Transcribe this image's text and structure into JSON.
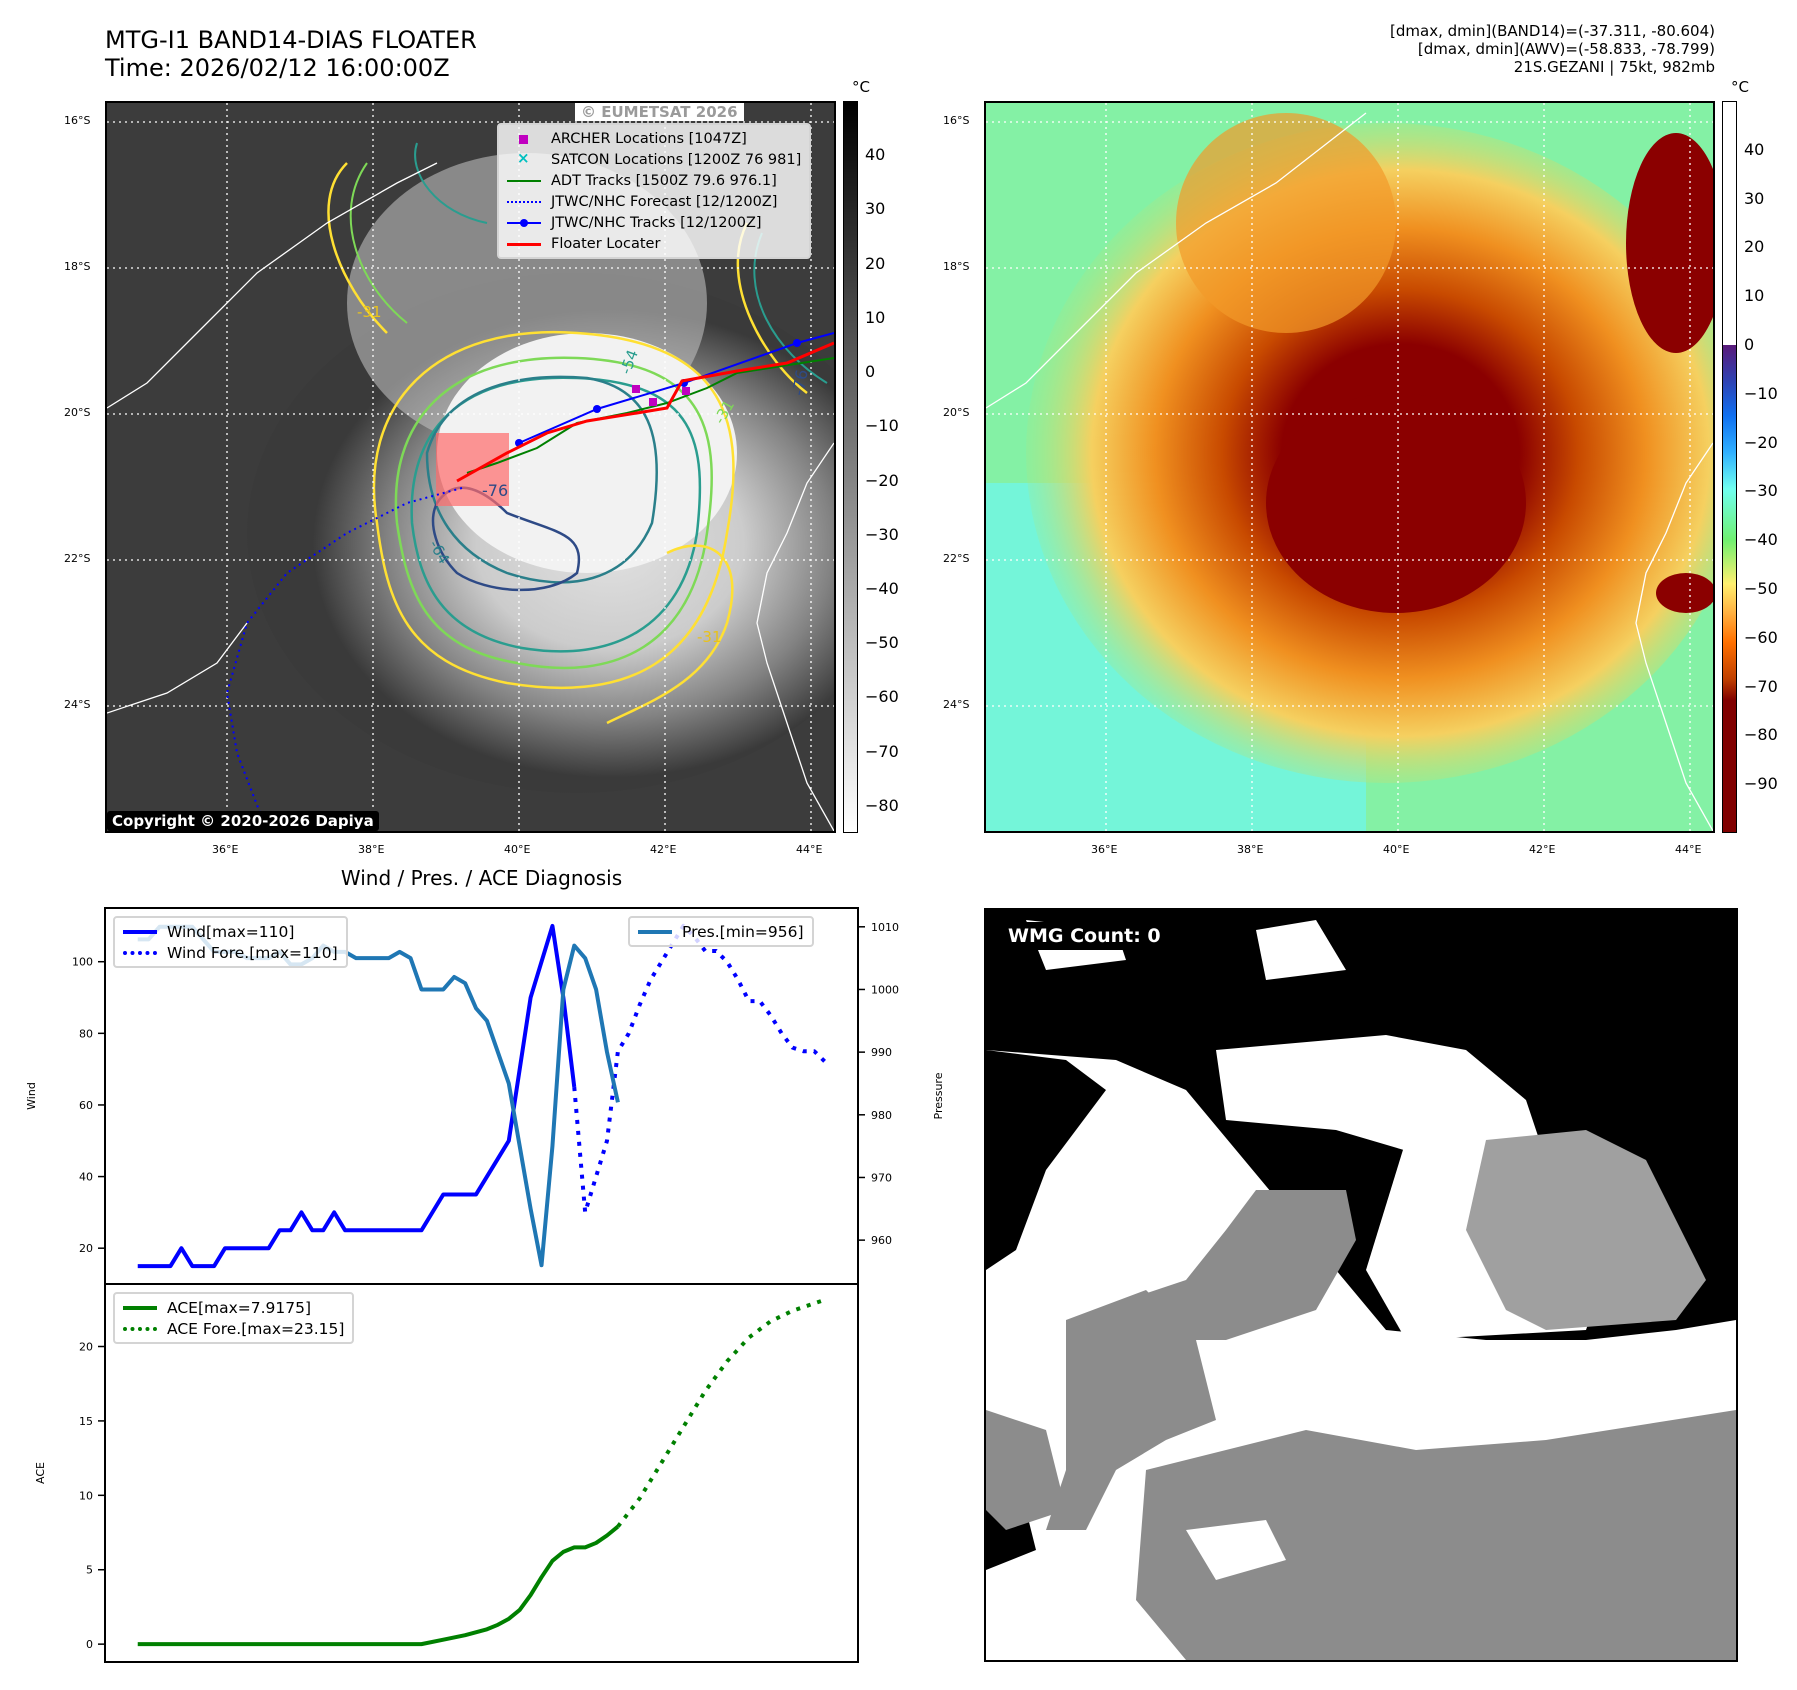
{
  "header": {
    "title_line1": "MTG-I1 BAND14-DIAS FLOATER",
    "title_line2": "Time: 2026/02/12 16:00:00Z",
    "info_line1": "[dmax, dmin](BAND14)=(-37.311, -80.604)",
    "info_line2": "[dmax, dmin](AWV)=(-58.833, -78.799)",
    "info_line3": "21S.GEZANI | 75kt, 982mb"
  },
  "map_left": {
    "lat_ticks": [
      "16°S",
      "18°S",
      "20°S",
      "22°S",
      "24°S"
    ],
    "lon_ticks": [
      "36°E",
      "38°E",
      "40°E",
      "42°E",
      "44°E"
    ],
    "legend": [
      {
        "label": "ARCHER Locations [1047Z]",
        "icon": "square-marker",
        "color": "#c000c0"
      },
      {
        "label": "SATCON Locations [1200Z 76 981]",
        "icon": "x-marker",
        "color": "#00c0c0"
      },
      {
        "label": "ADT Tracks [1500Z 79.6 976.1]",
        "icon": "solid-line",
        "color": "#008000"
      },
      {
        "label": "JTWC/NHC Forecast [12/1200Z]",
        "icon": "dotted-line",
        "color": "#0000ff"
      },
      {
        "label": "JTWC/NHC Tracks [12/1200Z]",
        "icon": "line-dot",
        "color": "#0000ff"
      },
      {
        "label": "Floater Locater",
        "icon": "solid-line",
        "color": "#ff0000"
      }
    ],
    "watermark": "© EUMETSAT 2026",
    "contour_labels": [
      "-31",
      "-31",
      "-31",
      "-54",
      "-64",
      "-76",
      "-76"
    ],
    "copyright": "Copyright © 2020-2026 Dapiya",
    "colorbar": {
      "unit": "°C",
      "ticks": [
        "40",
        "30",
        "20",
        "10",
        "0",
        "−10",
        "−20",
        "−30",
        "−40",
        "−50",
        "−60",
        "−70",
        "−80"
      ],
      "range": [
        -85,
        50
      ],
      "scheme": "grayscale"
    }
  },
  "map_right": {
    "lat_ticks": [
      "16°S",
      "18°S",
      "20°S",
      "22°S",
      "24°S"
    ],
    "lon_ticks": [
      "36°E",
      "38°E",
      "40°E",
      "42°E",
      "44°E"
    ],
    "colorbar": {
      "unit": "°C",
      "ticks": [
        "40",
        "30",
        "20",
        "10",
        "0",
        "−10",
        "−20",
        "−30",
        "−40",
        "−50",
        "−60",
        "−70",
        "−80",
        "−90"
      ],
      "range": [
        -100,
        50
      ],
      "scheme": "rainbow-above-zero-white"
    }
  },
  "wmg_panel": {
    "label": "WMG Count: 0"
  },
  "chart_data": [
    {
      "type": "line",
      "title": "Wind / Pres. / ACE Diagnosis",
      "xlabel": "",
      "ylabel": "Wind",
      "ylabel_right": "Pressure",
      "ylim": [
        10,
        115
      ],
      "ylim_right": [
        953,
        1013
      ],
      "yticks": [
        20,
        40,
        60,
        80,
        100
      ],
      "yticks_right": [
        960,
        970,
        980,
        990,
        1000,
        1010
      ],
      "xlim": [
        -3,
        66
      ],
      "series": [
        {
          "name": "Wind[max=110]",
          "axis": "left",
          "style": "solid",
          "color": "#0000ff",
          "x": [
            0,
            1,
            2,
            3,
            4,
            5,
            6,
            7,
            8,
            9,
            10,
            11,
            12,
            13,
            14,
            15,
            16,
            17,
            18,
            19,
            20,
            21,
            22,
            23,
            24,
            25,
            26,
            27,
            28,
            29,
            30,
            31,
            32,
            33,
            34,
            35,
            36,
            37,
            38,
            39,
            40
          ],
          "values": [
            15,
            15,
            15,
            15,
            20,
            15,
            15,
            15,
            20,
            20,
            20,
            20,
            20,
            25,
            25,
            30,
            25,
            25,
            30,
            25,
            25,
            25,
            25,
            25,
            25,
            25,
            25,
            30,
            35,
            35,
            35,
            35,
            40,
            45,
            50,
            70,
            90,
            100,
            110,
            90,
            65
          ]
        },
        {
          "name": "Wind Fore.[max=110]",
          "axis": "left",
          "style": "dotted",
          "color": "#0000ff",
          "x": [
            40,
            41,
            42,
            43,
            44,
            45,
            46,
            47,
            48,
            49,
            50,
            51,
            52,
            53,
            54,
            55,
            56,
            57,
            58,
            59,
            60,
            61,
            62,
            63
          ],
          "values": [
            65,
            30,
            40,
            50,
            75,
            80,
            88,
            95,
            100,
            105,
            110,
            107,
            103,
            103,
            100,
            95,
            89,
            89,
            85,
            80,
            76,
            75,
            75,
            72
          ]
        },
        {
          "name": "Pres.[min=956]",
          "axis": "right",
          "style": "solid",
          "color": "#1f77b4",
          "x": [
            0,
            1,
            2,
            3,
            4,
            5,
            6,
            7,
            8,
            9,
            10,
            11,
            12,
            13,
            14,
            15,
            16,
            17,
            18,
            19,
            20,
            21,
            22,
            23,
            24,
            25,
            26,
            27,
            28,
            29,
            30,
            31,
            32,
            33,
            34,
            35,
            36,
            37,
            38,
            39,
            40,
            41,
            42,
            43,
            44
          ],
          "values": [
            1008,
            1008,
            1010,
            1010,
            1010,
            1010,
            1008,
            1006,
            1006,
            1006,
            1005,
            1005,
            1005,
            1006,
            1004,
            1004,
            1005,
            1007,
            1006,
            1006,
            1005,
            1005,
            1005,
            1005,
            1006,
            1005,
            1000,
            1000,
            1000,
            1002,
            1001,
            997,
            995,
            990,
            985,
            975,
            965,
            956,
            975,
            1000,
            1007,
            1005,
            1000,
            990,
            982
          ]
        }
      ]
    },
    {
      "type": "line",
      "title": "",
      "xlabel": "",
      "ylabel": "ACE",
      "ylim": [
        -1.2,
        24.2
      ],
      "yticks": [
        0,
        5,
        10,
        15,
        20
      ],
      "xlim": [
        -3,
        66
      ],
      "series": [
        {
          "name": "ACE[max=7.9175]",
          "style": "solid",
          "color": "#008000",
          "x": [
            0,
            4,
            8,
            12,
            16,
            20,
            24,
            26,
            28,
            30,
            32,
            33,
            34,
            35,
            36,
            37,
            38,
            39,
            40,
            41,
            42,
            43,
            44
          ],
          "values": [
            0,
            0,
            0,
            0,
            0,
            0,
            0,
            0,
            0.3,
            0.6,
            1.0,
            1.3,
            1.7,
            2.3,
            3.3,
            4.5,
            5.6,
            6.2,
            6.5,
            6.5,
            6.8,
            7.3,
            7.9
          ]
        },
        {
          "name": "ACE Fore.[max=23.15]",
          "style": "dotted",
          "color": "#008000",
          "x": [
            44,
            46,
            48,
            50,
            52,
            54,
            56,
            58,
            60,
            62,
            63
          ],
          "values": [
            7.9,
            9.8,
            12.2,
            14.6,
            17.0,
            19.0,
            20.6,
            21.7,
            22.4,
            22.9,
            23.15
          ]
        }
      ]
    }
  ]
}
